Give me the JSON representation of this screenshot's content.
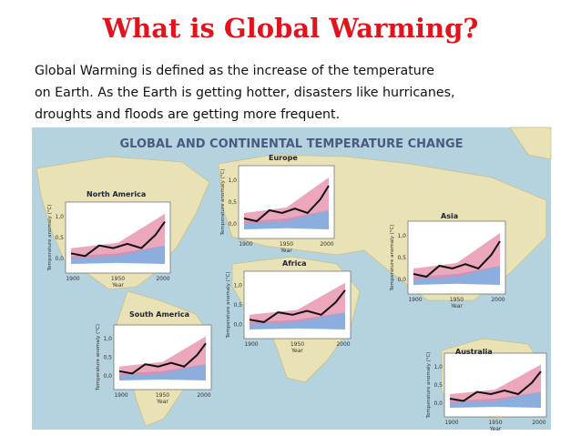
{
  "header": {
    "title": "What is Global Warming?"
  },
  "intro": {
    "lines": [
      "Global Warming is defined as the increase of the temperature",
      "on Earth. As the Earth is getting hotter, disasters like hurricanes,",
      "droughts and floods are getting more frequent."
    ]
  },
  "figure": {
    "title": "GLOBAL AND CONTINENTAL TEMPERATURE CHANGE",
    "panels": [
      {
        "region": "North America",
        "yticks": [
          "1,0",
          "0,5",
          "0,0"
        ],
        "xticks": [
          "1900",
          "1950",
          "2000"
        ],
        "xlabel": "Year",
        "ylabel": "Temperature anomaly (°C)"
      },
      {
        "region": "Europe",
        "yticks": [
          "1,0",
          "0,5",
          "0,0"
        ],
        "xticks": [
          "1900",
          "1950",
          "2000"
        ],
        "xlabel": "Year",
        "ylabel": "Temperature anomaly (°C)"
      },
      {
        "region": "Asia",
        "yticks": [
          "1,0",
          "0,5",
          "0,0"
        ],
        "xticks": [
          "1900",
          "1950",
          "2000"
        ],
        "xlabel": "Year",
        "ylabel": "Temperature anomaly (°C)"
      },
      {
        "region": "Africa",
        "yticks": [
          "1,0",
          "0,5",
          "0,0"
        ],
        "xticks": [
          "1900",
          "1950",
          "2000"
        ],
        "xlabel": "Year",
        "ylabel": "Temperature anomaly (°C)"
      },
      {
        "region": "South America",
        "yticks": [
          "1,0",
          "0,5",
          "0,0"
        ],
        "xticks": [
          "1900",
          "1950",
          "2000"
        ],
        "xlabel": "Year",
        "ylabel": "Temperature anomaly (°C)"
      },
      {
        "region": "Australia",
        "yticks": [
          "1,0",
          "0,5",
          "0,0"
        ],
        "xticks": [
          "1900",
          "1950",
          "2000"
        ],
        "xlabel": "Year",
        "ylabel": "Temperature anomaly (°C)"
      }
    ]
  }
}
